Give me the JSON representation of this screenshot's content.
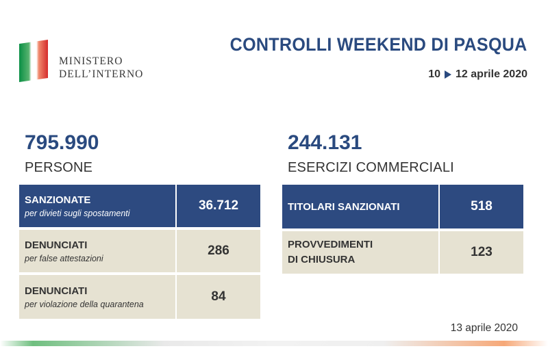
{
  "logo": {
    "line1": "MINISTERO",
    "line2": "DELL’INTERNO",
    "flag_colors": [
      "#009246",
      "#f1f1f1",
      "#ce2b37"
    ]
  },
  "header": {
    "title": "CONTROLLI WEEKEND DI PASQUA",
    "date_start": "10",
    "date_end": "12 aprile 2020"
  },
  "persons": {
    "total": "795.990",
    "label": "PERSONE",
    "rows": [
      {
        "label": "SANZIONATE",
        "note": "per divieti sugli spostamenti",
        "value": "36.712"
      },
      {
        "label": "DENUNCIATI",
        "note": "per false attestazioni",
        "value": "286"
      },
      {
        "label": "DENUNCIATI",
        "note": "per violazione della quarantena",
        "value": "84"
      }
    ]
  },
  "shops": {
    "total": "244.131",
    "label": "ESERCIZI COMMERCIALI",
    "rows": [
      {
        "label": "TITOLARI SANZIONATI",
        "value": "518"
      },
      {
        "label_line1": "PROVVEDIMENTI",
        "label_line2": "DI CHIUSURA",
        "value": "123"
      }
    ]
  },
  "footer": {
    "date": "13 aprile 2020"
  },
  "colors": {
    "accent_blue": "#2d4a80",
    "beige": "#e6e2d2"
  }
}
